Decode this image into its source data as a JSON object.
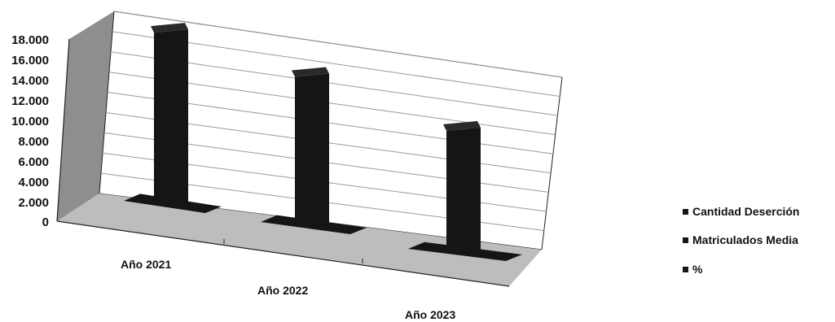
{
  "chart_data": {
    "type": "bar",
    "categories": [
      "Año 2021",
      "Año 2022",
      "Año 2023"
    ],
    "series": [
      {
        "name": "Cantidad Deserción",
        "values": [
          800,
          700,
          650
        ]
      },
      {
        "name": "Matriculados Media",
        "values": [
          17500,
          15200,
          12500
        ]
      },
      {
        "name": "%",
        "values": [
          4.6,
          4.6,
          5.2
        ]
      }
    ],
    "ylim": [
      0,
      18000
    ],
    "y_ticks": [
      "18.000",
      "16.000",
      "14.000",
      "12.000",
      "10.000",
      "8.000",
      "6.000",
      "4.000",
      "2.000",
      "0"
    ],
    "grid": true,
    "legend_position": "right",
    "colors": {
      "bar": "#151515",
      "back_wall": "#ffffff",
      "side_wall": "#8e8e8e",
      "floor": "#bdbdbd",
      "gridline": "#9a9a9a"
    }
  }
}
